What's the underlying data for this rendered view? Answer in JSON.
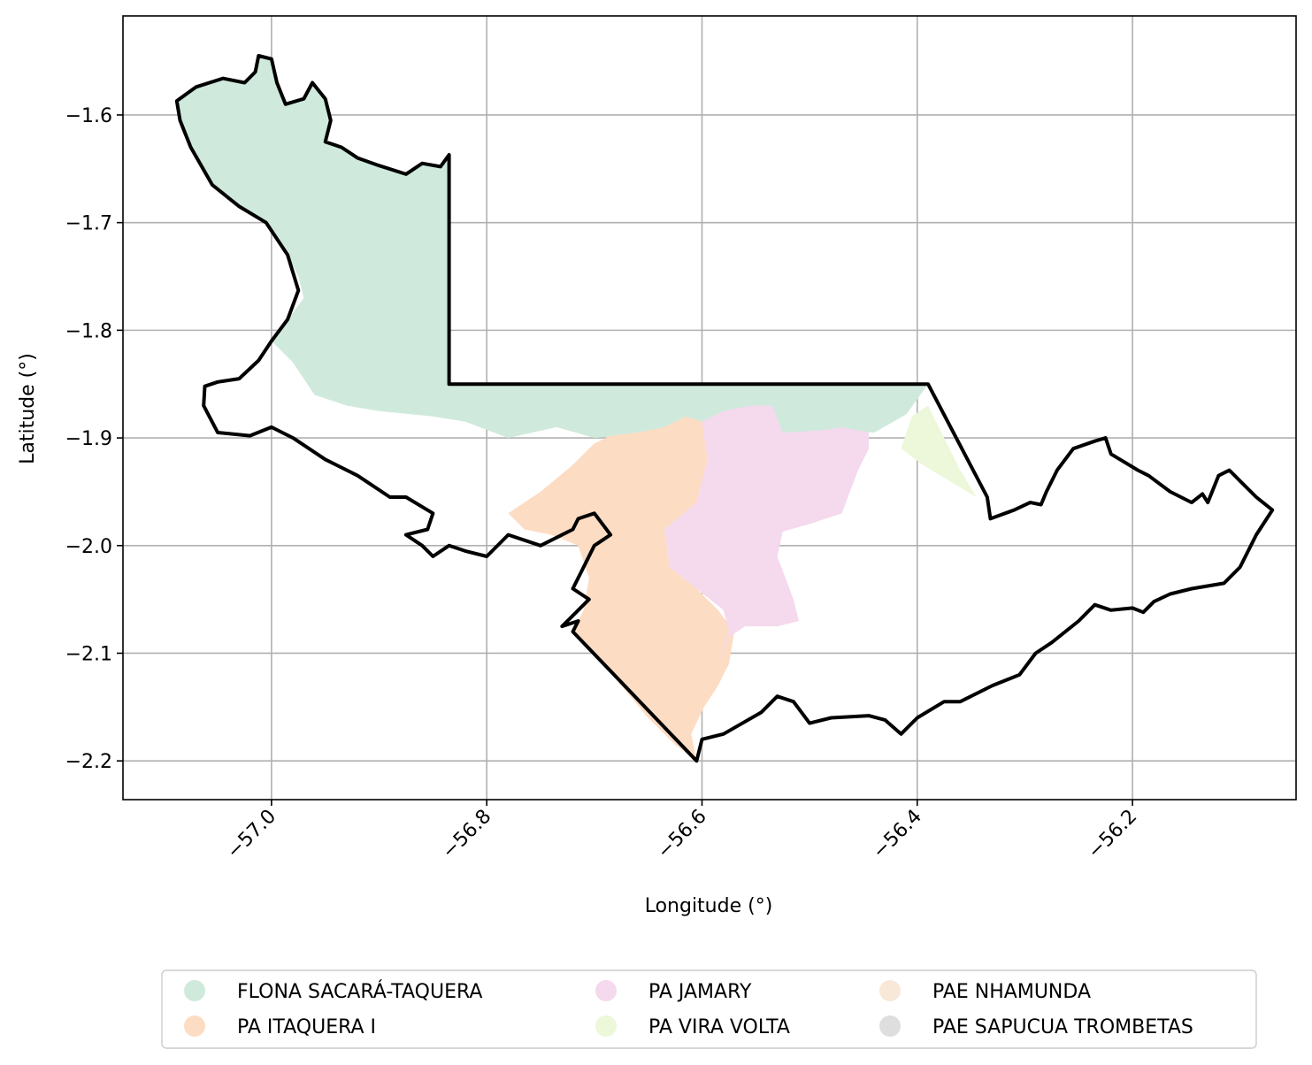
{
  "axes": {
    "xlabel": "Longitude (°)",
    "ylabel": "Latitude (°)",
    "xlim": [
      -57.138,
      -56.048
    ],
    "ylim": [
      -2.236,
      -1.508
    ],
    "x_ticks": [
      -57.0,
      -56.8,
      -56.6,
      -56.4,
      -56.2
    ],
    "y_ticks": [
      -1.6,
      -1.7,
      -1.8,
      -1.9,
      -2.0,
      -2.1,
      -2.2
    ],
    "x_tick_labels": [
      "−57.0",
      "−56.8",
      "−56.6",
      "−56.4",
      "−56.2"
    ],
    "y_tick_labels": [
      "−1.6",
      "−1.7",
      "−1.8",
      "−1.9",
      "−2.0",
      "−2.1",
      "−2.2"
    ],
    "grid": true
  },
  "legend": {
    "placement": "bottom-center, below plot",
    "columns": 3,
    "items": [
      {
        "label": "FLONA SACARÁ-TAQUERA",
        "color": "#cfeadc"
      },
      {
        "label": "PA ITAQUERA I",
        "color": "#fddcc4"
      },
      {
        "label": "PA JAMARY",
        "color": "#f5d9ec"
      },
      {
        "label": "PA VIRA VOLTA",
        "color": "#edf7d9"
      },
      {
        "label": "PAE NHAMUNDA",
        "color": "#f7e8d8"
      },
      {
        "label": "PAE SAPUCUA TROMBETAS",
        "color": "#dedede"
      }
    ]
  },
  "regions": [
    {
      "name": "FLONA SACARÁ-TAQUERA",
      "color": "#cfeadc",
      "points": [
        [
          -57.088,
          -1.587
        ],
        [
          -57.07,
          -1.574
        ],
        [
          -57.045,
          -1.566
        ],
        [
          -57.025,
          -1.57
        ],
        [
          -57.015,
          -1.56
        ],
        [
          -57.012,
          -1.545
        ],
        [
          -57.0,
          -1.548
        ],
        [
          -56.995,
          -1.57
        ],
        [
          -56.987,
          -1.59
        ],
        [
          -56.97,
          -1.585
        ],
        [
          -56.962,
          -1.57
        ],
        [
          -56.95,
          -1.585
        ],
        [
          -56.945,
          -1.605
        ],
        [
          -56.95,
          -1.625
        ],
        [
          -56.935,
          -1.63
        ],
        [
          -56.92,
          -1.64
        ],
        [
          -56.9,
          -1.647
        ],
        [
          -56.875,
          -1.655
        ],
        [
          -56.86,
          -1.645
        ],
        [
          -56.843,
          -1.648
        ],
        [
          -56.835,
          -1.637
        ],
        [
          -56.835,
          -1.85
        ],
        [
          -56.39,
          -1.85
        ],
        [
          -56.41,
          -1.878
        ],
        [
          -56.44,
          -1.895
        ],
        [
          -56.48,
          -1.893
        ],
        [
          -56.52,
          -1.897
        ],
        [
          -56.56,
          -1.895
        ],
        [
          -56.6,
          -1.897
        ],
        [
          -56.64,
          -1.895
        ],
        [
          -56.7,
          -1.9
        ],
        [
          -56.735,
          -1.89
        ],
        [
          -56.78,
          -1.9
        ],
        [
          -56.82,
          -1.885
        ],
        [
          -56.85,
          -1.88
        ],
        [
          -56.9,
          -1.875
        ],
        [
          -56.93,
          -1.87
        ],
        [
          -56.96,
          -1.86
        ],
        [
          -56.98,
          -1.83
        ],
        [
          -57.0,
          -1.81
        ],
        [
          -56.985,
          -1.79
        ],
        [
          -56.97,
          -1.77
        ],
        [
          -56.975,
          -1.75
        ],
        [
          -56.985,
          -1.73
        ],
        [
          -57.005,
          -1.7
        ],
        [
          -57.03,
          -1.685
        ],
        [
          -57.055,
          -1.665
        ],
        [
          -57.075,
          -1.63
        ],
        [
          -57.085,
          -1.605
        ]
      ]
    },
    {
      "name": "PA ITAQUERA I",
      "color": "#fddcc4",
      "points": [
        [
          -56.78,
          -1.97
        ],
        [
          -56.75,
          -1.95
        ],
        [
          -56.72,
          -1.925
        ],
        [
          -56.7,
          -1.905
        ],
        [
          -56.685,
          -1.898
        ],
        [
          -56.66,
          -1.895
        ],
        [
          -56.635,
          -1.89
        ],
        [
          -56.615,
          -1.88
        ],
        [
          -56.6,
          -1.885
        ],
        [
          -56.595,
          -1.92
        ],
        [
          -56.605,
          -1.96
        ],
        [
          -56.635,
          -1.985
        ],
        [
          -56.63,
          -2.02
        ],
        [
          -56.605,
          -2.04
        ],
        [
          -56.585,
          -2.06
        ],
        [
          -56.57,
          -2.08
        ],
        [
          -56.575,
          -2.11
        ],
        [
          -56.585,
          -2.13
        ],
        [
          -56.598,
          -2.15
        ],
        [
          -56.61,
          -2.175
        ],
        [
          -56.605,
          -2.2
        ],
        [
          -56.625,
          -2.185
        ],
        [
          -56.65,
          -2.16
        ],
        [
          -56.675,
          -2.13
        ],
        [
          -56.7,
          -2.1
        ],
        [
          -56.72,
          -2.08
        ],
        [
          -56.71,
          -2.06
        ],
        [
          -56.705,
          -2.03
        ],
        [
          -56.715,
          -2.0
        ],
        [
          -56.74,
          -1.99
        ],
        [
          -56.765,
          -1.985
        ]
      ]
    },
    {
      "name": "PA JAMARY",
      "color": "#f5d9ec",
      "points": [
        [
          -56.6,
          -1.885
        ],
        [
          -56.58,
          -1.875
        ],
        [
          -56.555,
          -1.87
        ],
        [
          -56.535,
          -1.87
        ],
        [
          -56.525,
          -1.895
        ],
        [
          -56.49,
          -1.893
        ],
        [
          -56.47,
          -1.89
        ],
        [
          -56.445,
          -1.895
        ],
        [
          -56.445,
          -1.91
        ],
        [
          -56.455,
          -1.93
        ],
        [
          -56.47,
          -1.97
        ],
        [
          -56.5,
          -1.98
        ],
        [
          -56.525,
          -1.987
        ],
        [
          -56.53,
          -2.01
        ],
        [
          -56.515,
          -2.05
        ],
        [
          -56.51,
          -2.07
        ],
        [
          -56.53,
          -2.075
        ],
        [
          -56.56,
          -2.075
        ],
        [
          -56.575,
          -2.085
        ],
        [
          -56.585,
          -2.11
        ],
        [
          -56.575,
          -2.08
        ],
        [
          -56.58,
          -2.06
        ],
        [
          -56.605,
          -2.04
        ],
        [
          -56.63,
          -2.02
        ],
        [
          -56.635,
          -1.985
        ],
        [
          -56.605,
          -1.96
        ],
        [
          -56.595,
          -1.92
        ]
      ]
    },
    {
      "name": "PA VIRA VOLTA",
      "color": "#edf7d9",
      "points": [
        [
          -56.39,
          -1.87
        ],
        [
          -56.405,
          -1.88
        ],
        [
          -56.415,
          -1.91
        ],
        [
          -56.395,
          -1.925
        ],
        [
          -56.37,
          -1.94
        ],
        [
          -56.345,
          -1.955
        ],
        [
          -56.36,
          -1.93
        ],
        [
          -56.375,
          -1.9
        ],
        [
          -56.385,
          -1.88
        ]
      ]
    }
  ],
  "boundary": [
    [
      -57.088,
      -1.587
    ],
    [
      -57.07,
      -1.574
    ],
    [
      -57.045,
      -1.566
    ],
    [
      -57.025,
      -1.57
    ],
    [
      -57.015,
      -1.56
    ],
    [
      -57.012,
      -1.545
    ],
    [
      -57.0,
      -1.548
    ],
    [
      -56.995,
      -1.57
    ],
    [
      -56.987,
      -1.59
    ],
    [
      -56.97,
      -1.585
    ],
    [
      -56.962,
      -1.57
    ],
    [
      -56.95,
      -1.585
    ],
    [
      -56.945,
      -1.605
    ],
    [
      -56.95,
      -1.625
    ],
    [
      -56.935,
      -1.63
    ],
    [
      -56.92,
      -1.64
    ],
    [
      -56.9,
      -1.647
    ],
    [
      -56.875,
      -1.655
    ],
    [
      -56.86,
      -1.645
    ],
    [
      -56.843,
      -1.648
    ],
    [
      -56.835,
      -1.637
    ],
    [
      -56.835,
      -1.85
    ],
    [
      -56.39,
      -1.85
    ],
    [
      -56.335,
      -1.955
    ],
    [
      -56.332,
      -1.975
    ],
    [
      -56.31,
      -1.967
    ],
    [
      -56.295,
      -1.96
    ],
    [
      -56.285,
      -1.962
    ],
    [
      -56.28,
      -1.95
    ],
    [
      -56.27,
      -1.93
    ],
    [
      -56.255,
      -1.91
    ],
    [
      -56.235,
      -1.903
    ],
    [
      -56.225,
      -1.9
    ],
    [
      -56.22,
      -1.915
    ],
    [
      -56.195,
      -1.93
    ],
    [
      -56.185,
      -1.935
    ],
    [
      -56.165,
      -1.95
    ],
    [
      -56.145,
      -1.96
    ],
    [
      -56.135,
      -1.952
    ],
    [
      -56.13,
      -1.96
    ],
    [
      -56.12,
      -1.935
    ],
    [
      -56.11,
      -1.93
    ],
    [
      -56.1,
      -1.94
    ],
    [
      -56.085,
      -1.955
    ],
    [
      -56.07,
      -1.967
    ],
    [
      -56.085,
      -1.99
    ],
    [
      -56.1,
      -2.02
    ],
    [
      -56.115,
      -2.035
    ],
    [
      -56.145,
      -2.04
    ],
    [
      -56.165,
      -2.045
    ],
    [
      -56.18,
      -2.052
    ],
    [
      -56.19,
      -2.062
    ],
    [
      -56.2,
      -2.058
    ],
    [
      -56.22,
      -2.06
    ],
    [
      -56.235,
      -2.055
    ],
    [
      -56.25,
      -2.07
    ],
    [
      -56.275,
      -2.09
    ],
    [
      -56.29,
      -2.1
    ],
    [
      -56.305,
      -2.12
    ],
    [
      -56.33,
      -2.13
    ],
    [
      -56.36,
      -2.145
    ],
    [
      -56.375,
      -2.145
    ],
    [
      -56.4,
      -2.16
    ],
    [
      -56.415,
      -2.175
    ],
    [
      -56.43,
      -2.162
    ],
    [
      -56.445,
      -2.158
    ],
    [
      -56.48,
      -2.16
    ],
    [
      -56.5,
      -2.165
    ],
    [
      -56.515,
      -2.145
    ],
    [
      -56.53,
      -2.14
    ],
    [
      -56.545,
      -2.155
    ],
    [
      -56.58,
      -2.175
    ],
    [
      -56.6,
      -2.18
    ],
    [
      -56.605,
      -2.2
    ],
    [
      -56.72,
      -2.08
    ],
    [
      -56.715,
      -2.07
    ],
    [
      -56.73,
      -2.075
    ],
    [
      -56.715,
      -2.06
    ],
    [
      -56.705,
      -2.05
    ],
    [
      -56.72,
      -2.04
    ],
    [
      -56.71,
      -2.02
    ],
    [
      -56.7,
      -2.0
    ],
    [
      -56.685,
      -1.99
    ],
    [
      -56.7,
      -1.97
    ],
    [
      -56.715,
      -1.975
    ],
    [
      -56.72,
      -1.985
    ],
    [
      -56.75,
      -2.0
    ],
    [
      -56.78,
      -1.99
    ],
    [
      -56.8,
      -2.01
    ],
    [
      -56.82,
      -2.005
    ],
    [
      -56.835,
      -2.0
    ],
    [
      -56.85,
      -2.01
    ],
    [
      -56.86,
      -2.0
    ],
    [
      -56.875,
      -1.99
    ],
    [
      -56.855,
      -1.985
    ],
    [
      -56.85,
      -1.97
    ],
    [
      -56.875,
      -1.955
    ],
    [
      -56.89,
      -1.955
    ],
    [
      -56.92,
      -1.935
    ],
    [
      -56.95,
      -1.92
    ],
    [
      -56.98,
      -1.9
    ],
    [
      -57.0,
      -1.89
    ],
    [
      -57.02,
      -1.898
    ],
    [
      -57.05,
      -1.895
    ],
    [
      -57.063,
      -1.87
    ],
    [
      -57.062,
      -1.852
    ],
    [
      -57.05,
      -1.848
    ],
    [
      -57.03,
      -1.845
    ],
    [
      -57.012,
      -1.828
    ],
    [
      -57.0,
      -1.81
    ],
    [
      -56.985,
      -1.79
    ],
    [
      -56.975,
      -1.763
    ],
    [
      -56.985,
      -1.73
    ],
    [
      -57.005,
      -1.7
    ],
    [
      -57.03,
      -1.685
    ],
    [
      -57.055,
      -1.665
    ],
    [
      -57.075,
      -1.63
    ],
    [
      -57.085,
      -1.605
    ]
  ]
}
